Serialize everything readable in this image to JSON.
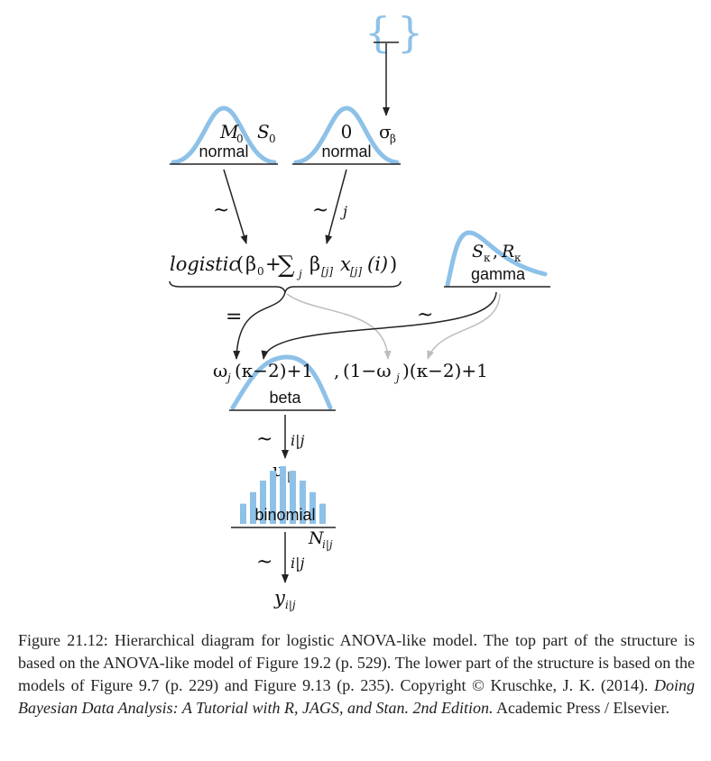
{
  "top_node": {
    "open_brace": "{",
    "close_brace": "}"
  },
  "prior_b0": {
    "mean": "M",
    "mean_sub": "0",
    "sd": "S",
    "sd_sub": "0",
    "dist": "normal"
  },
  "prior_bj": {
    "mean": "0",
    "dist": "normal",
    "sd": "σ",
    "sd_sub": "β"
  },
  "arrows": {
    "tilde": "~",
    "j": "j",
    "equals": "=",
    "ij": "i|j"
  },
  "logistic": {
    "fn": "logistic",
    "open": "(",
    "b0": "β",
    "b0_sub": "0",
    "plus": "+",
    "sum": "∑",
    "sum_sub": "j",
    "bj": "β",
    "bj_sub": "[j]",
    "x": "x",
    "x_sub": "[j]",
    "arg": "(i)",
    "close": ")"
  },
  "gamma": {
    "shape": "S",
    "shape_sub": "κ",
    "comma": ",",
    "rate": "R",
    "rate_sub": "κ",
    "dist": "gamma"
  },
  "beta": {
    "omega": "ω",
    "omega_sub": "j",
    "a_rest": "(κ−2)+1",
    "comma": ",",
    "b_open": "(1−ω",
    "b_sub": "j",
    "b_rest": ")(κ−2)+1",
    "dist": "beta"
  },
  "mu": {
    "sym": "μ",
    "sub": "i|j"
  },
  "binomial": {
    "dist": "binomial",
    "n": "N",
    "n_sub": "i|j",
    "bar_levels": [
      0.35,
      0.55,
      0.75,
      0.92,
      1.0,
      0.92,
      0.75,
      0.55,
      0.35
    ]
  },
  "y": {
    "sym": "y",
    "sub": "i|j"
  },
  "caption": {
    "p1": "Figure 21.12: Hierarchical diagram for logistic ANOVA-like model. The top part of the structure is based on the ANOVA-like model of Figure 19.2 (p. 529). The lower part of the structure is based on the models of Figure 9.7 (p. 229) and Figure 9.13 (p. 235).   Copyright © Kruschke, J. K. (2014). ",
    "book": "Doing Bayesian Data Analysis: A Tutorial with R, JAGS, and Stan. 2nd Edition.",
    "p2": " Academic Press / Elsevier."
  },
  "colors": {
    "curve": "#8ec1e8",
    "arrow_dark": "#222222",
    "arrow_gray": "#bdbdbd"
  }
}
